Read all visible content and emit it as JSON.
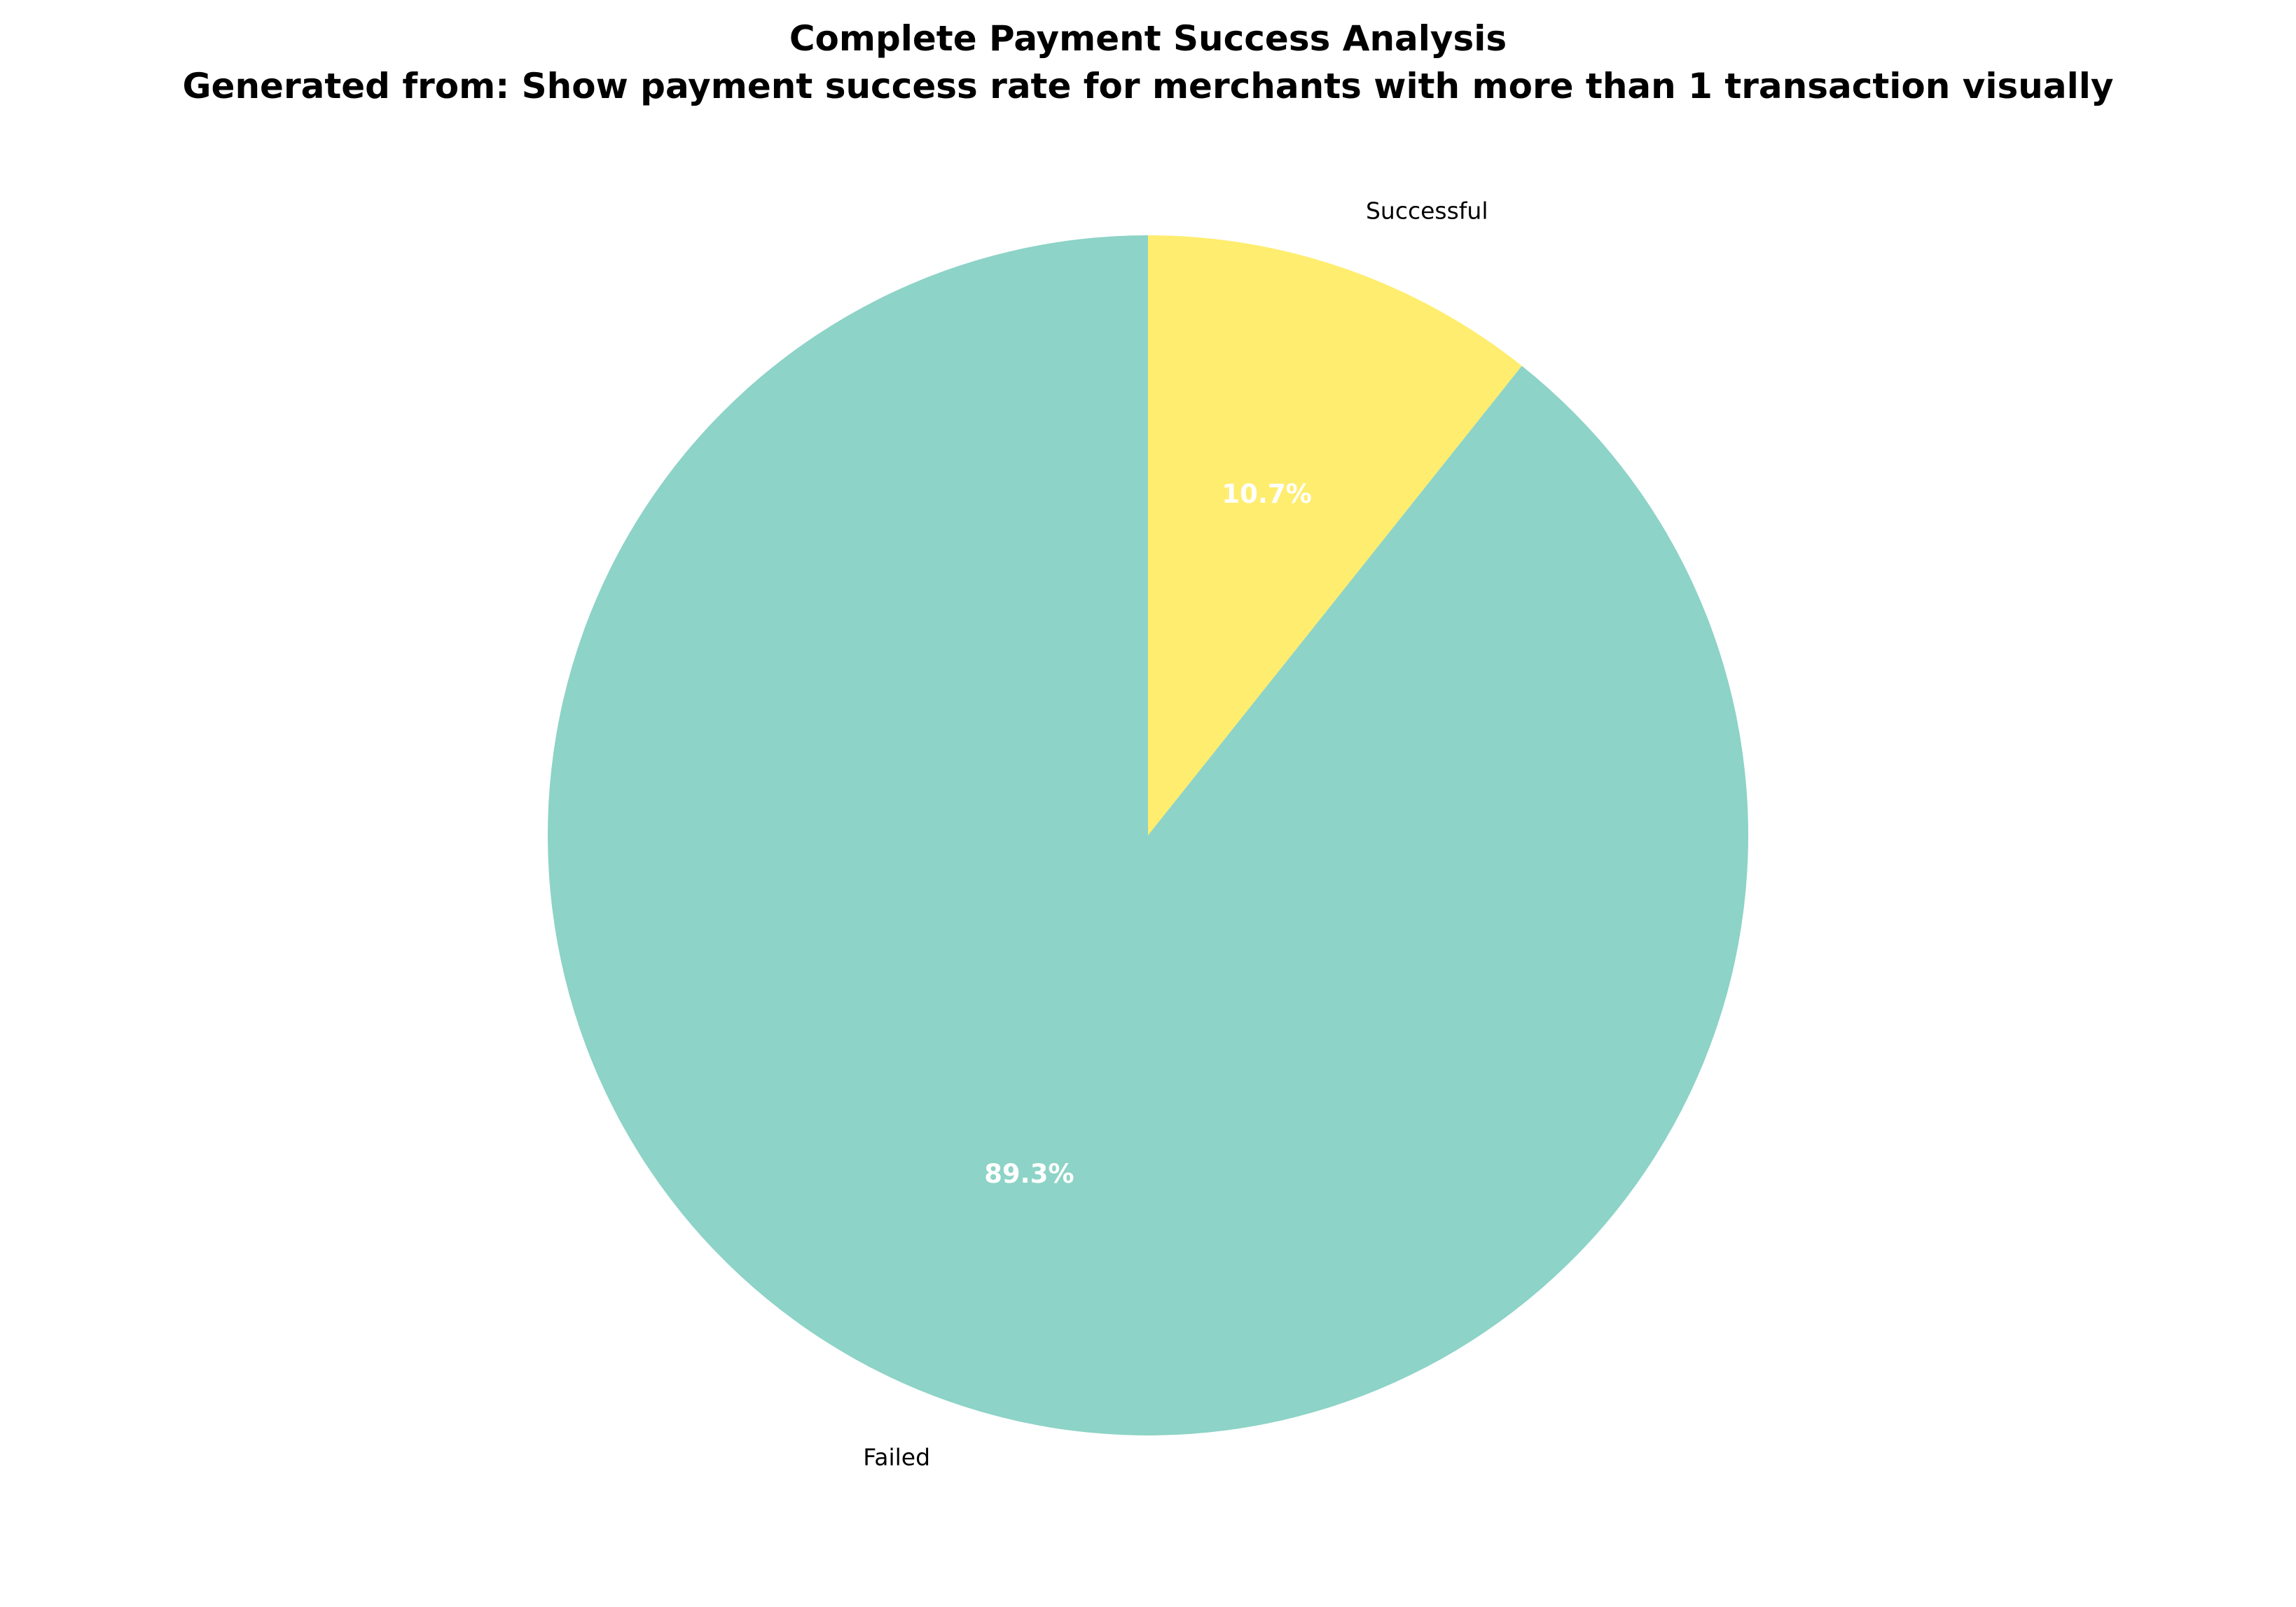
{
  "chart_data": {
    "type": "pie",
    "title": "Complete Payment Success Analysis",
    "subtitle": "Generated from: Show payment success rate for merchants with more than 1 transaction visually",
    "start_angle_deg": 90,
    "direction": "clockwise",
    "legend": "none",
    "slices": [
      {
        "label": "Successful",
        "value": 10.7,
        "pct_label": "10.7%",
        "color": "#ffed6f"
      },
      {
        "label": "Failed",
        "value": 89.3,
        "pct_label": "89.3%",
        "color": "#8dd3c7"
      }
    ]
  }
}
